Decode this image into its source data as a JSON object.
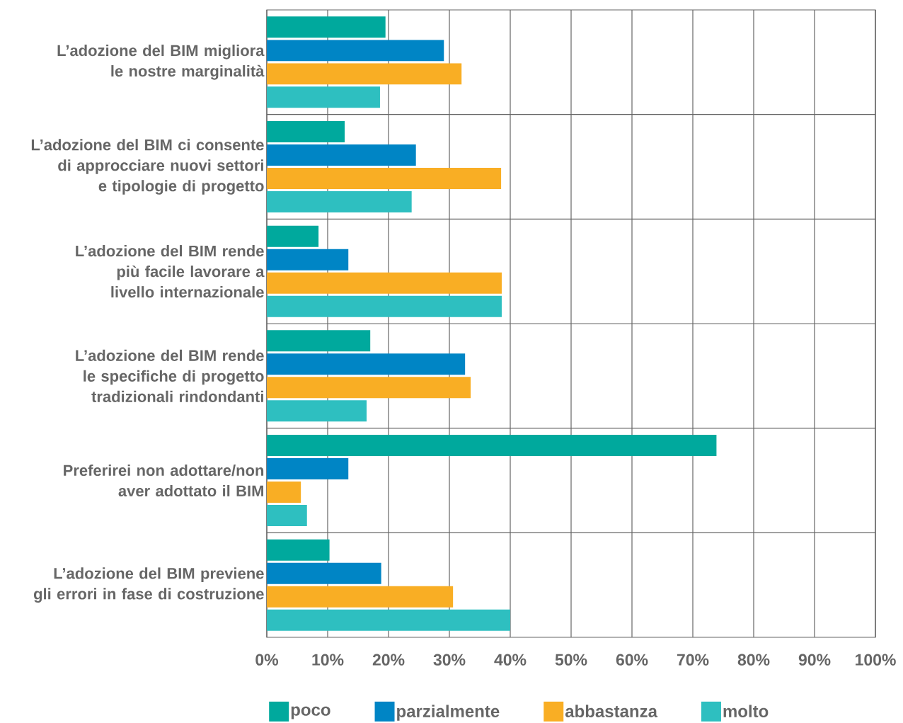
{
  "chart_data": {
    "type": "bar",
    "orientation": "horizontal",
    "categories": [
      "L’adozione del BIM migliora le nostre marginalità",
      "L’adozione del BIM ci consente di approcciare nuovi settori e tipologie di progetto",
      "L’adozione del BIM rende più facile lavorare a livello internazionale",
      "L’adozione del BIM rende le specifiche di progetto tradizionali rindondanti",
      "Preferirei non adottare/non aver adottato il BIM",
      "L’adozione del BIM previene gli errori in fase di costruzione"
    ],
    "series": [
      {
        "name": "poco",
        "color": "#00a99d",
        "values": [
          19.5,
          12.8,
          8.5,
          17.0,
          73.9,
          10.3
        ]
      },
      {
        "name": "parzialmente",
        "color": "#0085c5",
        "values": [
          29.1,
          24.5,
          13.4,
          32.6,
          13.4,
          18.8
        ]
      },
      {
        "name": "abbastanza",
        "color": "#f9ae24",
        "values": [
          32.0,
          38.5,
          38.6,
          33.5,
          5.6,
          30.6
        ]
      },
      {
        "name": "molto",
        "color": "#2ebfc0",
        "values": [
          18.6,
          23.8,
          38.6,
          16.4,
          6.6,
          40.0
        ]
      }
    ],
    "xlim": [
      0,
      100
    ],
    "xticks": [
      {
        "value": 0,
        "label": "0%"
      },
      {
        "value": 10,
        "label": "10%"
      },
      {
        "value": 20,
        "label": "20%"
      },
      {
        "value": 30,
        "label": "30%"
      },
      {
        "value": 40,
        "label": "40%"
      },
      {
        "value": 50,
        "label": "50%"
      },
      {
        "value": 60,
        "label": "60%"
      },
      {
        "value": 70,
        "label": "70%"
      },
      {
        "value": 80,
        "label": "80%"
      },
      {
        "value": 90,
        "label": "90%"
      },
      {
        "value": 100,
        "label": "100%"
      }
    ],
    "grid": true,
    "legend": "bottom"
  }
}
